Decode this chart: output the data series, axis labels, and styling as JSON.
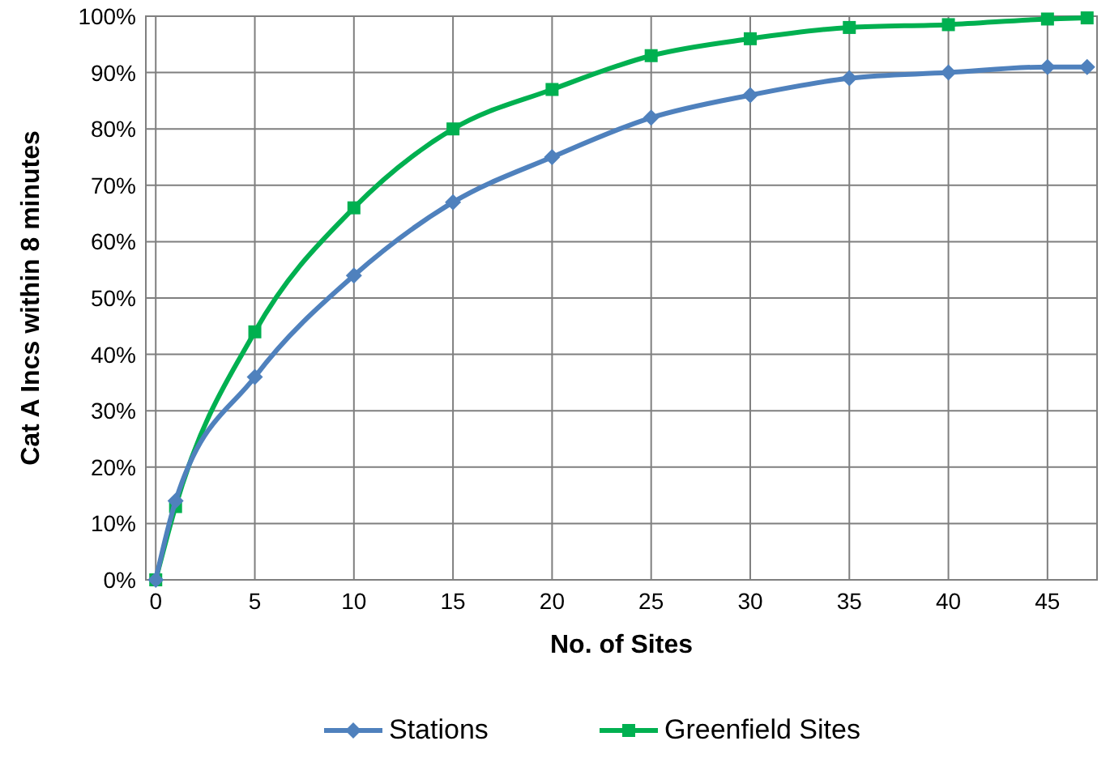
{
  "chart_data": {
    "type": "line",
    "xlabel": "No. of Sites",
    "ylabel": "Cat A Incs within 8 minutes",
    "x": [
      0,
      1,
      5,
      10,
      15,
      20,
      25,
      30,
      35,
      40,
      45,
      47
    ],
    "series": [
      {
        "name": "Stations",
        "color": "#4f81bd",
        "marker": "diamond",
        "values": [
          0,
          14,
          36,
          54,
          67,
          75,
          82,
          86,
          89,
          90,
          91,
          91
        ]
      },
      {
        "name": "Greenfield Sites",
        "color": "#00b050",
        "marker": "square",
        "values": [
          0,
          13,
          44,
          66,
          80,
          87,
          93,
          96,
          98,
          98.5,
          99.5,
          99.7
        ]
      }
    ],
    "xlim": [
      -0.5,
      47.5
    ],
    "xticks": [
      0,
      5,
      10,
      15,
      20,
      25,
      30,
      35,
      40,
      45
    ],
    "ylim": [
      0,
      100
    ],
    "yticks": [
      {
        "value": 0,
        "label": "0%"
      },
      {
        "value": 10,
        "label": "10%"
      },
      {
        "value": 20,
        "label": "20%"
      },
      {
        "value": 30,
        "label": "30%"
      },
      {
        "value": 40,
        "label": "40%"
      },
      {
        "value": 50,
        "label": "50%"
      },
      {
        "value": 60,
        "label": "60%"
      },
      {
        "value": 70,
        "label": "70%"
      },
      {
        "value": 80,
        "label": "80%"
      },
      {
        "value": 90,
        "label": "90%"
      },
      {
        "value": 100,
        "label": "100%"
      }
    ],
    "grid": true,
    "legend": "bottom",
    "line_style": "solid"
  }
}
